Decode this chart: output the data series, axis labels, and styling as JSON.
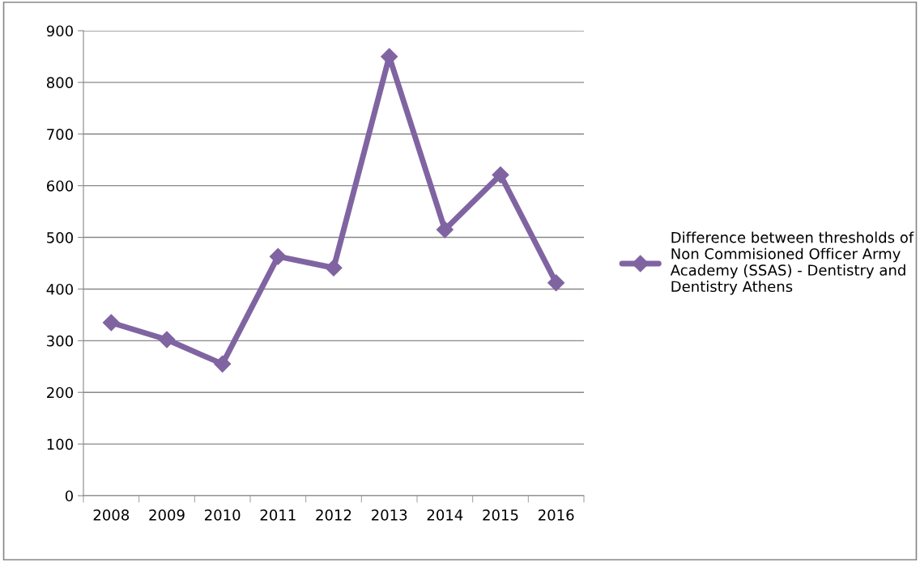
{
  "chart_data": {
    "type": "line",
    "categories": [
      "2008",
      "2009",
      "2010",
      "2011",
      "2012",
      "2013",
      "2014",
      "2015",
      "2016"
    ],
    "series": [
      {
        "name": "Difference between thresholds of Non Commisioned Officer Army Academy (SSAS) - Dentistry and Dentistry Athens",
        "color": "#8064a2",
        "values": [
          335,
          302,
          255,
          463,
          441,
          850,
          515,
          621,
          412
        ]
      }
    ],
    "ylim": [
      0,
      900
    ],
    "yticks": [
      0,
      100,
      200,
      300,
      400,
      500,
      600,
      700,
      800,
      900
    ],
    "grid": "y",
    "legend": "right",
    "marker": "diamond",
    "line_style": "solid"
  }
}
